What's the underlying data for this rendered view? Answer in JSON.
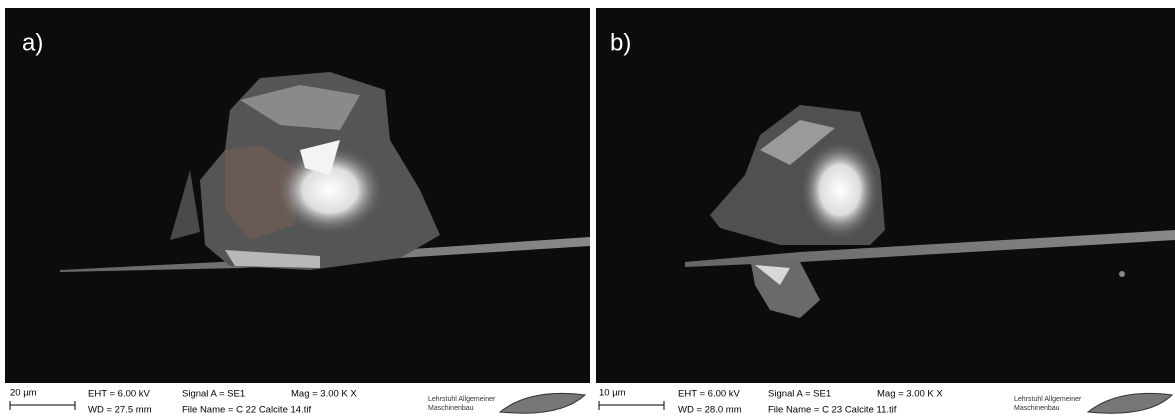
{
  "panels": [
    {
      "label": "a)",
      "scale_bar": "20 µm",
      "eht": "EHT = 6.00 kV",
      "wd": "WD = 27.5 mm",
      "signal": "Signal A = SE1",
      "file_name": "File Name = C  22  Calcite  14.tif",
      "mag": "Mag =   3.00 K X",
      "institute": [
        "Lehrstuhl Allgemeiner",
        "Maschinenbau"
      ]
    },
    {
      "label": "b)",
      "scale_bar": "10 µm",
      "eht": "EHT =  6.00 kV",
      "wd": "WD = 28.0 mm",
      "signal": "Signal A = SE1",
      "file_name": "File Name = C  23  Calcite  11.tif",
      "mag": "Mag =   3.00 K X",
      "institute": [
        "Lehrstuhl Allgemeiner",
        "Maschinenbau"
      ]
    }
  ]
}
